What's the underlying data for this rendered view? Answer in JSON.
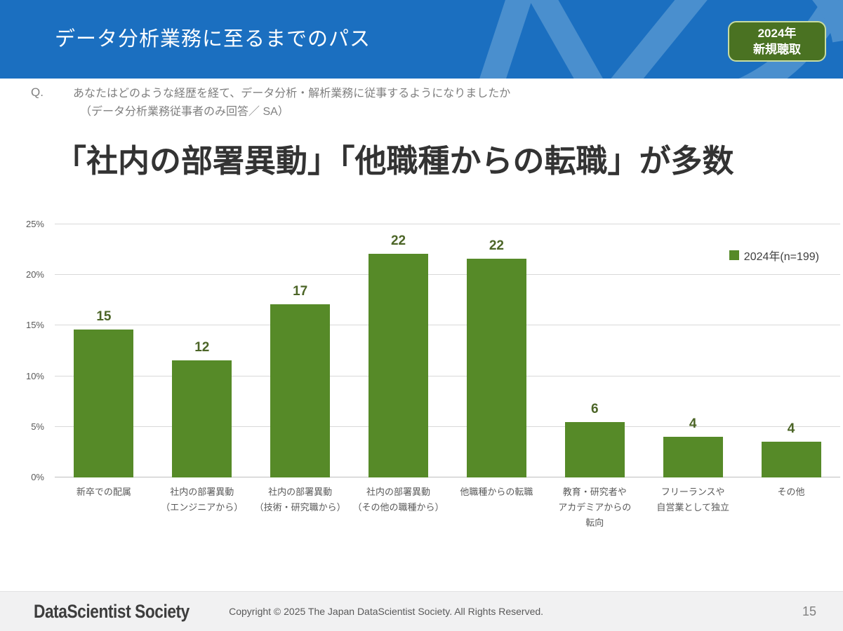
{
  "header": {
    "title": "データ分析業務に至るまでのパス",
    "badge": {
      "line1": "2024年",
      "line2": "新規聴取"
    },
    "colors": {
      "bg": "#1B6FC0",
      "swirl": "#4A8FCE",
      "badge_bg": "#4A7222",
      "badge_border": "#C8DCA2"
    }
  },
  "question": {
    "prefix": "Q.",
    "line1": "あなたはどのような経歴を経て、データ分析・解析業務に従事するようになりましたか",
    "line2": "（データ分析業務従事者のみ回答／ SA）"
  },
  "headline": "「社内の部署異動」「他職種からの転職」が多数",
  "chart_data": {
    "type": "bar",
    "title": "",
    "categories": [
      [
        "新卒での配属"
      ],
      [
        "社内の部署異動",
        "（エンジニアから）"
      ],
      [
        "社内の部署異動",
        "（技術・研究職から）"
      ],
      [
        "社内の部署異動",
        "（その他の職種から）"
      ],
      [
        "他職種からの転職"
      ],
      [
        "教育・研究者や",
        "アカデミアからの",
        "転向"
      ],
      [
        "フリーランスや",
        "自営業として独立"
      ],
      [
        "その他"
      ]
    ],
    "values": [
      14.6,
      11.6,
      17.1,
      22.1,
      21.6,
      5.5,
      4.0,
      3.5
    ],
    "value_labels": [
      "15",
      "12",
      "17",
      "22",
      "22",
      "6",
      "4",
      "4"
    ],
    "legend": "2024年(n=199)",
    "legend_position": "top-right",
    "xlabel": "",
    "ylabel": "",
    "ylim": [
      0,
      25
    ],
    "yticks": [
      "0%",
      "5%",
      "10%",
      "15%",
      "20%",
      "25%"
    ],
    "grid": true,
    "bar_color": "#568A28",
    "value_label_color": "#4C6527",
    "grid_color": "#D9D9D9"
  },
  "footer": {
    "logo": "DataScientist Society",
    "copyright": "Copyright © 2025 The Japan DataScientist Society. All Rights Reserved.",
    "page_number": "15"
  }
}
